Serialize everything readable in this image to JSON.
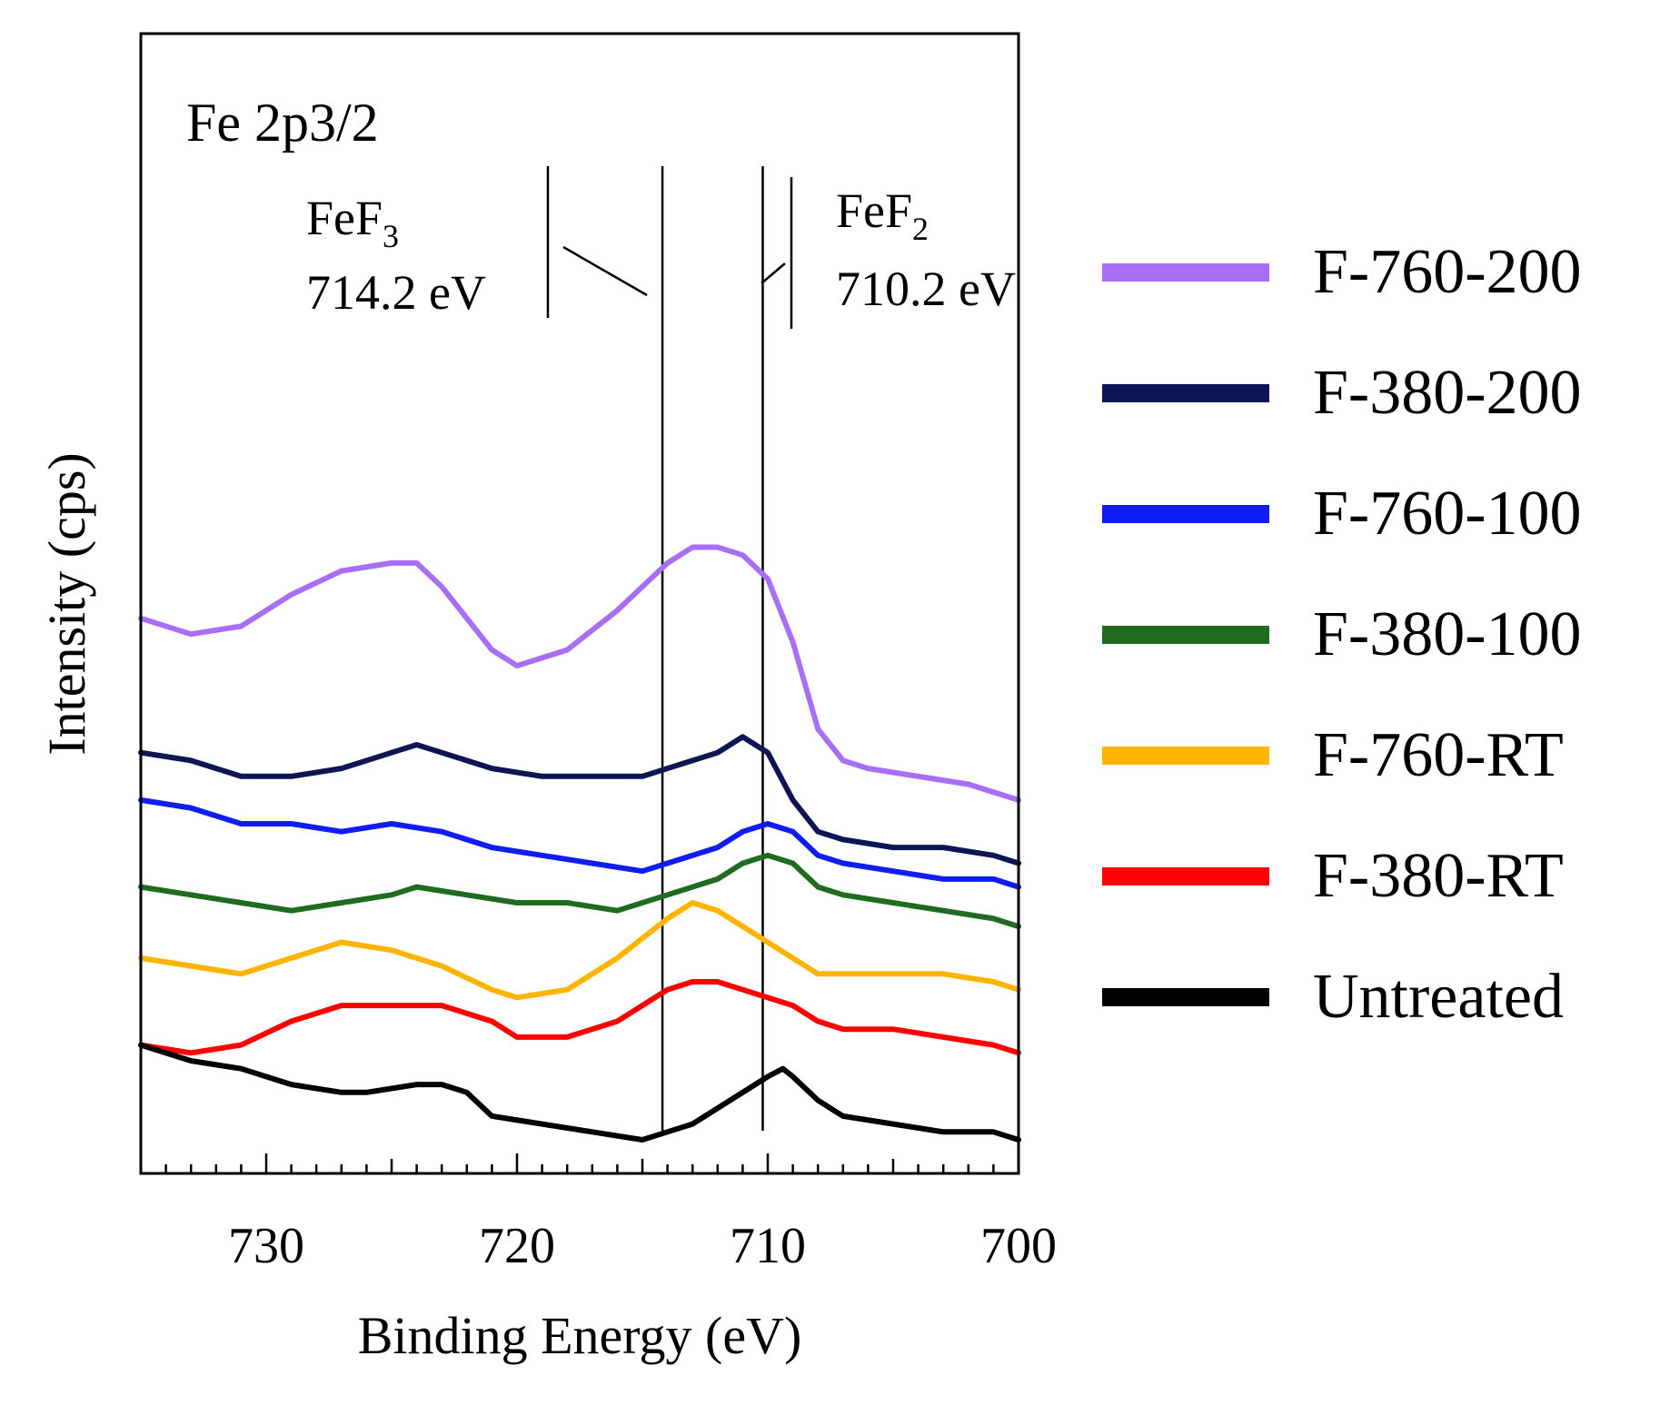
{
  "chart_data": {
    "type": "line",
    "panel_label": "Fe 2p3/2",
    "xlabel": "Binding Energy (eV)",
    "ylabel": "Intensity (cps)",
    "xlim": [
      735,
      700
    ],
    "x_reversed": true,
    "xticks": [
      730,
      720,
      710,
      700
    ],
    "ylim": [
      0,
      100
    ],
    "yticks_shown": false,
    "reference_lines": [
      {
        "x": 714.2,
        "label_main": "FeF",
        "label_sub": "3",
        "label_value": "714.2 eV",
        "side": "left"
      },
      {
        "x": 710.2,
        "label_main": "FeF",
        "label_sub": "2",
        "label_value": "710.2 eV",
        "side": "right"
      }
    ],
    "legend_position": "right",
    "series": [
      {
        "name": "F-760-200",
        "color": "#a86ef5",
        "points": [
          [
            735,
            66
          ],
          [
            733,
            64
          ],
          [
            731,
            65
          ],
          [
            729,
            69
          ],
          [
            727,
            72
          ],
          [
            725,
            73
          ],
          [
            724,
            73
          ],
          [
            723,
            70
          ],
          [
            721,
            62
          ],
          [
            720,
            60
          ],
          [
            718,
            62
          ],
          [
            716,
            67
          ],
          [
            714,
            73
          ],
          [
            713,
            75
          ],
          [
            712,
            75
          ],
          [
            711,
            74
          ],
          [
            710,
            71
          ],
          [
            709,
            63
          ],
          [
            708,
            52
          ],
          [
            707,
            48
          ],
          [
            706,
            47
          ],
          [
            704,
            46
          ],
          [
            702,
            45
          ],
          [
            700,
            43
          ]
        ]
      },
      {
        "name": "F-380-200",
        "color": "#0d1654",
        "points": [
          [
            735,
            49
          ],
          [
            733,
            48
          ],
          [
            731,
            46
          ],
          [
            729,
            46
          ],
          [
            727,
            47
          ],
          [
            725,
            49
          ],
          [
            724,
            50
          ],
          [
            723,
            49
          ],
          [
            721,
            47
          ],
          [
            719,
            46
          ],
          [
            717,
            46
          ],
          [
            715,
            46
          ],
          [
            713,
            48
          ],
          [
            712,
            49
          ],
          [
            711,
            51
          ],
          [
            710,
            49
          ],
          [
            709,
            43
          ],
          [
            708,
            39
          ],
          [
            707,
            38
          ],
          [
            705,
            37
          ],
          [
            703,
            37
          ],
          [
            701,
            36
          ],
          [
            700,
            35
          ]
        ]
      },
      {
        "name": "F-760-100",
        "color": "#0f1cf2",
        "points": [
          [
            735,
            43
          ],
          [
            733,
            42
          ],
          [
            731,
            40
          ],
          [
            729,
            40
          ],
          [
            727,
            39
          ],
          [
            725,
            40
          ],
          [
            723,
            39
          ],
          [
            721,
            37
          ],
          [
            719,
            36
          ],
          [
            717,
            35
          ],
          [
            715,
            34
          ],
          [
            714,
            35
          ],
          [
            712,
            37
          ],
          [
            711,
            39
          ],
          [
            710,
            40
          ],
          [
            709,
            39
          ],
          [
            708,
            36
          ],
          [
            707,
            35
          ],
          [
            705,
            34
          ],
          [
            703,
            33
          ],
          [
            701,
            33
          ],
          [
            700,
            32
          ]
        ]
      },
      {
        "name": "F-380-100",
        "color": "#1f6b1f",
        "points": [
          [
            735,
            32
          ],
          [
            733,
            31
          ],
          [
            731,
            30
          ],
          [
            729,
            29
          ],
          [
            727,
            30
          ],
          [
            725,
            31
          ],
          [
            724,
            32
          ],
          [
            722,
            31
          ],
          [
            720,
            30
          ],
          [
            718,
            30
          ],
          [
            716,
            29
          ],
          [
            714,
            31
          ],
          [
            712,
            33
          ],
          [
            711,
            35
          ],
          [
            710,
            36
          ],
          [
            709,
            35
          ],
          [
            708,
            32
          ],
          [
            707,
            31
          ],
          [
            705,
            30
          ],
          [
            703,
            29
          ],
          [
            701,
            28
          ],
          [
            700,
            27
          ]
        ]
      },
      {
        "name": "F-760-RT",
        "color": "#ffb400",
        "points": [
          [
            735,
            23
          ],
          [
            733,
            22
          ],
          [
            731,
            21
          ],
          [
            729,
            23
          ],
          [
            727,
            25
          ],
          [
            725,
            24
          ],
          [
            723,
            22
          ],
          [
            721,
            19
          ],
          [
            720,
            18
          ],
          [
            718,
            19
          ],
          [
            716,
            23
          ],
          [
            714,
            28
          ],
          [
            713,
            30
          ],
          [
            712,
            29
          ],
          [
            711,
            27
          ],
          [
            710,
            25
          ],
          [
            709,
            23
          ],
          [
            708,
            21
          ],
          [
            707,
            21
          ],
          [
            705,
            21
          ],
          [
            703,
            21
          ],
          [
            701,
            20
          ],
          [
            700,
            19
          ]
        ]
      },
      {
        "name": "F-380-RT",
        "color": "#ff0000",
        "points": [
          [
            735,
            12
          ],
          [
            733,
            11
          ],
          [
            731,
            12
          ],
          [
            729,
            15
          ],
          [
            727,
            17
          ],
          [
            725,
            17
          ],
          [
            723,
            17
          ],
          [
            721,
            15
          ],
          [
            720,
            13
          ],
          [
            718,
            13
          ],
          [
            716,
            15
          ],
          [
            714,
            19
          ],
          [
            713,
            20
          ],
          [
            712,
            20
          ],
          [
            711,
            19
          ],
          [
            710,
            18
          ],
          [
            709,
            17
          ],
          [
            708,
            15
          ],
          [
            707,
            14
          ],
          [
            705,
            14
          ],
          [
            703,
            13
          ],
          [
            701,
            12
          ],
          [
            700,
            11
          ]
        ]
      },
      {
        "name": "Untreated",
        "color": "#000000",
        "points": [
          [
            735,
            12
          ],
          [
            733,
            10
          ],
          [
            731,
            9
          ],
          [
            729,
            7
          ],
          [
            727,
            6
          ],
          [
            726,
            6
          ],
          [
            724,
            7
          ],
          [
            723,
            7
          ],
          [
            722,
            6
          ],
          [
            721,
            3
          ],
          [
            719,
            2
          ],
          [
            717,
            1
          ],
          [
            715,
            0
          ],
          [
            714,
            1
          ],
          [
            713,
            2
          ],
          [
            712,
            4
          ],
          [
            711,
            6
          ],
          [
            710,
            8
          ],
          [
            709.4,
            9
          ],
          [
            709,
            8
          ],
          [
            708,
            5
          ],
          [
            707,
            3
          ],
          [
            705,
            2
          ],
          [
            703,
            1
          ],
          [
            701,
            1
          ],
          [
            700,
            0
          ]
        ]
      }
    ]
  }
}
